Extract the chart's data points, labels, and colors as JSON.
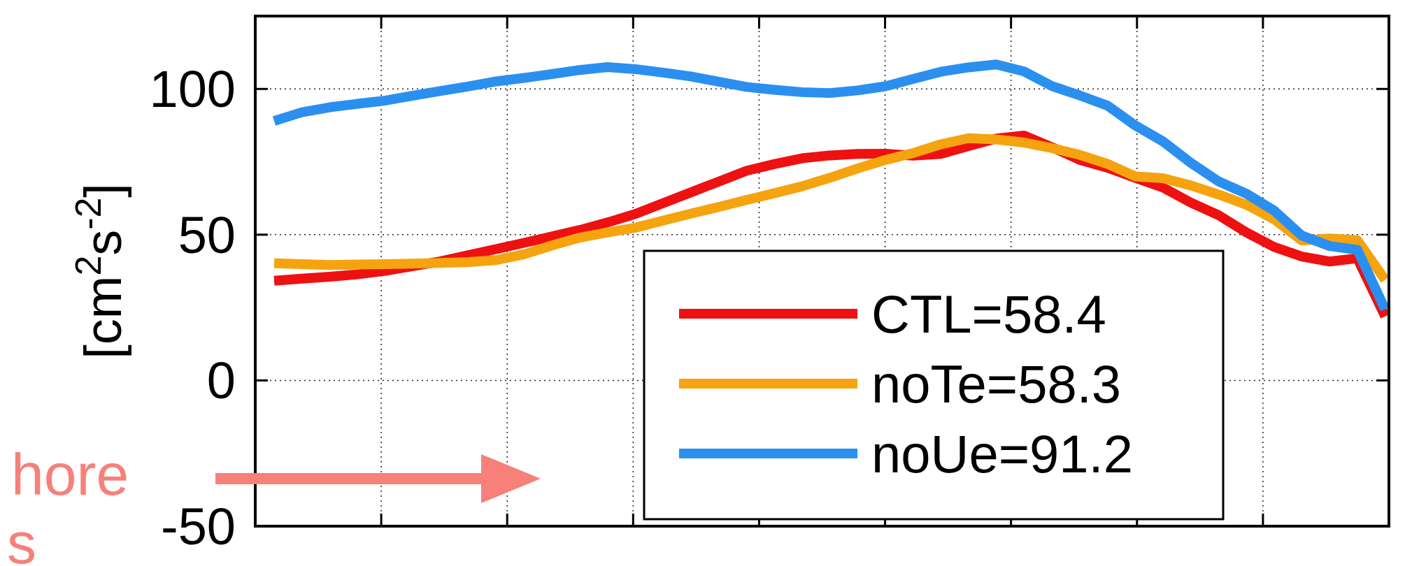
{
  "chart_data": {
    "type": "line",
    "ylabel": "[cm$^{2}$s$^{-2}$]",
    "annotations": [
      "hore",
      "s"
    ],
    "categories": [
      null,
      null,
      null,
      null,
      null,
      null,
      null,
      null,
      null,
      null,
      null,
      null,
      null,
      null,
      null,
      null,
      null,
      null,
      null,
      null,
      null,
      null,
      null,
      null,
      null,
      null,
      null,
      null,
      null,
      null,
      null,
      null,
      null,
      null,
      null,
      null,
      null,
      null,
      null,
      null,
      null
    ],
    "ylim": [
      -50,
      125
    ],
    "yticks": [
      -50,
      0,
      50,
      100
    ],
    "grid": true,
    "legend": "bottom right",
    "line_style": "solid",
    "series": [
      {
        "name": "CTL=58.4",
        "color": "#ee1111",
        "values": [
          34.2,
          34.9,
          35.6,
          36.4,
          37.6,
          39.2,
          40.9,
          43.0,
          45.1,
          47.2,
          49.4,
          51.6,
          54.2,
          57.1,
          60.8,
          64.5,
          68.2,
          71.9,
          74.2,
          76.2,
          77.2,
          77.7,
          77.8,
          77.1,
          77.7,
          80.4,
          83.0,
          84.0,
          80.0,
          75.7,
          73.0,
          69.5,
          66.2,
          61.0,
          56.7,
          50.8,
          45.8,
          42.5,
          40.8,
          41.9,
          22
        ]
      },
      {
        "name": "noTe=58.3",
        "color": "#f5a30f",
        "values": [
          40.2,
          39.9,
          39.6,
          39.8,
          39.9,
          40.1,
          40.3,
          40.6,
          41.3,
          43.3,
          46.3,
          49.0,
          50.8,
          52.4,
          54.8,
          57.2,
          59.5,
          61.9,
          64.2,
          66.6,
          69.5,
          72.7,
          75.6,
          78.0,
          81.0,
          83.1,
          82.7,
          81.6,
          79.7,
          77.4,
          74.3,
          70.0,
          69.4,
          66.9,
          63.8,
          60.3,
          55.3,
          48.0,
          48.7,
          48.1,
          34.5
        ]
      },
      {
        "name": "noUe=91.2",
        "color": "#2b8ff0",
        "values": [
          89.0,
          92.0,
          93.7,
          94.9,
          96.0,
          97.7,
          99.3,
          100.9,
          102.6,
          103.8,
          105.1,
          106.5,
          107.5,
          106.8,
          105.6,
          104.3,
          102.5,
          100.7,
          99.7,
          98.9,
          98.6,
          99.5,
          100.9,
          103.4,
          105.9,
          107.4,
          108.4,
          106.0,
          101.0,
          97.8,
          94.3,
          87.5,
          82.0,
          74.7,
          68.3,
          64.1,
          58.3,
          49.7,
          46.1,
          44.8,
          24.4
        ]
      }
    ]
  }
}
